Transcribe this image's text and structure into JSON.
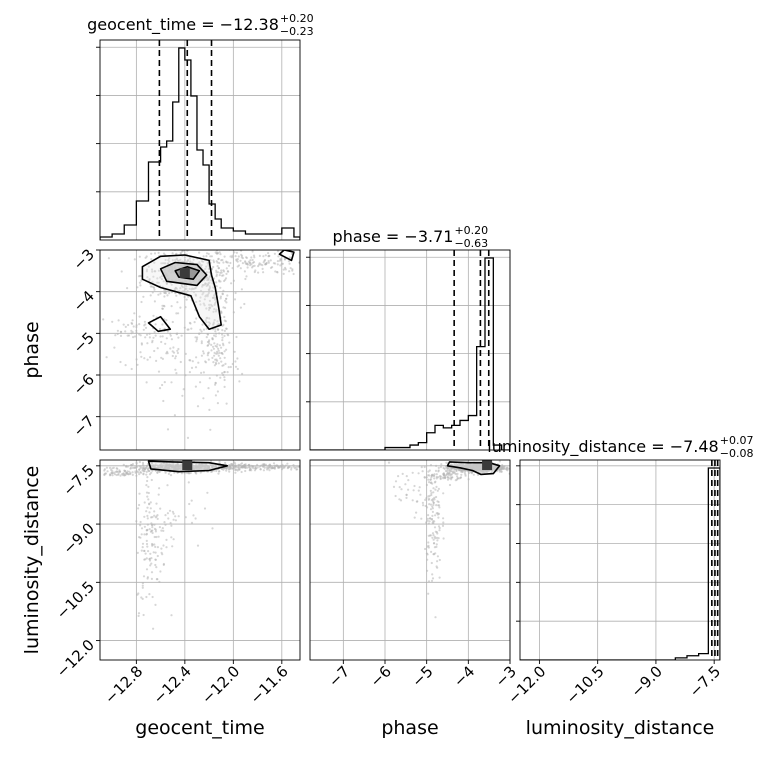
{
  "chart_data": {
    "type": "corner",
    "parameters": [
      "geocent_time",
      "phase",
      "luminosity_distance"
    ],
    "panel_titles": [
      {
        "param": "geocent_time",
        "name": "geocent_time",
        "median": "−12.38",
        "plus": "+0.20",
        "minus": "−0.23"
      },
      {
        "param": "phase",
        "name": "phase",
        "median": "−3.71",
        "plus": "+0.20",
        "minus": "−0.63"
      },
      {
        "param": "luminosity_distance",
        "name": "luminosity_distance",
        "median": "−7.48",
        "plus": "+0.07",
        "minus": "−0.08"
      }
    ],
    "axis_labels": {
      "x": [
        "geocent_time",
        "phase",
        "luminosity_distance"
      ],
      "y": [
        "phase",
        "luminosity_distance"
      ]
    },
    "ranges": {
      "geocent_time": [
        -13.1,
        -11.45
      ],
      "phase": [
        -7.8,
        -3.0
      ],
      "luminosity_distance": [
        -12.5,
        -7.35
      ]
    },
    "ticks": {
      "geocent_time": [
        -12.8,
        -12.4,
        -12.0,
        -11.6
      ],
      "phase": [
        -7,
        -6,
        -5,
        -4,
        -3
      ],
      "luminosity_distance": [
        -12.0,
        -10.5,
        -9.0,
        -7.5
      ]
    },
    "tick_labels": {
      "geocent_time": [
        "−12.8",
        "−12.4",
        "−12.0",
        "−11.6"
      ],
      "phase": [
        "−7",
        "−6",
        "−5",
        "−4",
        "−3"
      ],
      "luminosity_distance": [
        "−12.0",
        "−10.5",
        "−9.0",
        "−7.5"
      ]
    },
    "histograms": {
      "geocent_time": {
        "bin_edges": [
          -13.1,
          -13.0,
          -12.9,
          -12.8,
          -12.7,
          -12.6,
          -12.55,
          -12.5,
          -12.45,
          -12.4,
          -12.35,
          -12.3,
          -12.25,
          -12.2,
          -12.15,
          -12.1,
          -12.0,
          -11.9,
          -11.8,
          -11.7,
          -11.6,
          -11.5,
          -11.45
        ],
        "counts": [
          1,
          2,
          5,
          13,
          26,
          31,
          33,
          46,
          64,
          60,
          48,
          30,
          25,
          12,
          7,
          4,
          3,
          2,
          2,
          2,
          4,
          1
        ]
      },
      "phase": {
        "bin_edges": [
          -7.8,
          -7.6,
          -7.4,
          -7.2,
          -7.0,
          -6.8,
          -6.6,
          -6.4,
          -6.2,
          -6.0,
          -5.8,
          -5.6,
          -5.4,
          -5.2,
          -5.0,
          -4.8,
          -4.6,
          -4.4,
          -4.2,
          -4.0,
          -3.8,
          -3.6,
          -3.4,
          -3.2,
          -3.0
        ],
        "counts": [
          0,
          0,
          0,
          0,
          0,
          0,
          0,
          0,
          0,
          1,
          1,
          1,
          2,
          3,
          7,
          10,
          9,
          10,
          12,
          14,
          42,
          78,
          2,
          0
        ]
      },
      "luminosity_distance": {
        "bin_edges": [
          -12.5,
          -8.5,
          -8.2,
          -7.9,
          -7.65,
          -7.5,
          -7.35
        ],
        "counts": [
          0,
          1,
          2,
          3,
          90,
          90
        ]
      }
    },
    "quantile_lines": {
      "geocent_time": [
        -12.61,
        -12.38,
        -12.18
      ],
      "phase": [
        -4.34,
        -3.71,
        -3.51
      ],
      "luminosity_distance": [
        -7.56,
        -7.48,
        -7.41
      ]
    },
    "contours_phase_vs_geocent": [
      [
        [
          -12.75,
          -3.4
        ],
        [
          -12.6,
          -3.15
        ],
        [
          -12.4,
          -3.12
        ],
        [
          -12.2,
          -3.25
        ],
        [
          -12.18,
          -3.6
        ],
        [
          -12.15,
          -3.9
        ],
        [
          -12.12,
          -4.4
        ],
        [
          -12.1,
          -4.8
        ],
        [
          -12.2,
          -4.9
        ],
        [
          -12.28,
          -4.6
        ],
        [
          -12.35,
          -4.1
        ],
        [
          -12.6,
          -3.9
        ],
        [
          -12.75,
          -3.7
        ]
      ],
      [
        [
          -12.6,
          -3.45
        ],
        [
          -12.48,
          -3.3
        ],
        [
          -12.3,
          -3.35
        ],
        [
          -12.22,
          -3.6
        ],
        [
          -12.3,
          -3.85
        ],
        [
          -12.55,
          -3.75
        ]
      ],
      [
        [
          -12.48,
          -3.5
        ],
        [
          -12.38,
          -3.4
        ],
        [
          -12.28,
          -3.5
        ],
        [
          -12.33,
          -3.7
        ],
        [
          -12.45,
          -3.65
        ]
      ],
      [
        [
          -12.7,
          -4.75
        ],
        [
          -12.6,
          -4.6
        ],
        [
          -12.52,
          -4.9
        ],
        [
          -12.62,
          -4.95
        ]
      ],
      [
        [
          -11.58,
          -3.0
        ],
        [
          -11.5,
          -3.05
        ],
        [
          -11.52,
          -3.25
        ],
        [
          -11.62,
          -3.1
        ]
      ]
    ],
    "contours_dist_vs_geocent": [
      [
        [
          -12.7,
          -7.38
        ],
        [
          -12.5,
          -7.4
        ],
        [
          -12.2,
          -7.42
        ],
        [
          -12.05,
          -7.5
        ],
        [
          -12.2,
          -7.62
        ],
        [
          -12.45,
          -7.65
        ],
        [
          -12.68,
          -7.58
        ]
      ]
    ],
    "contours_dist_vs_phase": [
      [
        [
          -4.45,
          -7.4
        ],
        [
          -4.0,
          -7.42
        ],
        [
          -3.5,
          -7.42
        ],
        [
          -3.25,
          -7.5
        ],
        [
          -3.4,
          -7.7
        ],
        [
          -3.7,
          -7.72
        ],
        [
          -3.9,
          -7.62
        ],
        [
          -4.2,
          -7.55
        ],
        [
          -4.5,
          -7.5
        ]
      ]
    ],
    "scatter_regions": {
      "phase_vs_geocent": [
        {
          "cx": -12.4,
          "cy": -3.6,
          "sx": 0.18,
          "sy": 0.35,
          "n": 420
        },
        {
          "cx": -12.15,
          "cy": -4.5,
          "sx": 0.07,
          "sy": 0.7,
          "n": 150
        },
        {
          "cx": -12.12,
          "cy": -5.6,
          "sx": 0.09,
          "sy": 0.6,
          "n": 80
        },
        {
          "cx": -12.55,
          "cy": -5.1,
          "sx": 0.2,
          "sy": 0.4,
          "n": 90
        },
        {
          "cx": -12.85,
          "cy": -4.95,
          "sx": 0.12,
          "sy": 0.15,
          "n": 40
        },
        {
          "cx": -11.8,
          "cy": -3.3,
          "sx": 0.2,
          "sy": 0.15,
          "n": 140
        },
        {
          "cx": -12.45,
          "cy": -6.2,
          "sx": 0.15,
          "sy": 0.5,
          "n": 25
        }
      ],
      "dist_vs_geocent": [
        {
          "cx": -12.4,
          "cy": -7.55,
          "sx": 0.25,
          "sy": 0.06,
          "n": 600
        },
        {
          "cx": -12.95,
          "cy": -7.7,
          "sx": 0.1,
          "sy": 0.04,
          "n": 60
        },
        {
          "cx": -11.75,
          "cy": -7.52,
          "sx": 0.2,
          "sy": 0.04,
          "n": 120
        },
        {
          "cx": -12.68,
          "cy": -9.4,
          "sx": 0.06,
          "sy": 0.9,
          "n": 130
        },
        {
          "cx": -12.5,
          "cy": -8.7,
          "sx": 0.12,
          "sy": 0.5,
          "n": 40
        }
      ],
      "dist_vs_phase": [
        {
          "cx": -3.8,
          "cy": -7.55,
          "sx": 0.35,
          "sy": 0.06,
          "n": 600
        },
        {
          "cx": -4.6,
          "cy": -7.75,
          "sx": 0.25,
          "sy": 0.08,
          "n": 80
        },
        {
          "cx": -4.85,
          "cy": -8.9,
          "sx": 0.1,
          "sy": 0.8,
          "n": 120
        },
        {
          "cx": -5.3,
          "cy": -8.3,
          "sx": 0.3,
          "sy": 0.4,
          "n": 40
        }
      ]
    },
    "grid": true,
    "colors": {
      "line": "#000000",
      "grid": "#b0b0b0",
      "point": "#b4b4b4",
      "fill_light": "#c8c8c8",
      "fill_dark": "#3a3a3a"
    }
  }
}
